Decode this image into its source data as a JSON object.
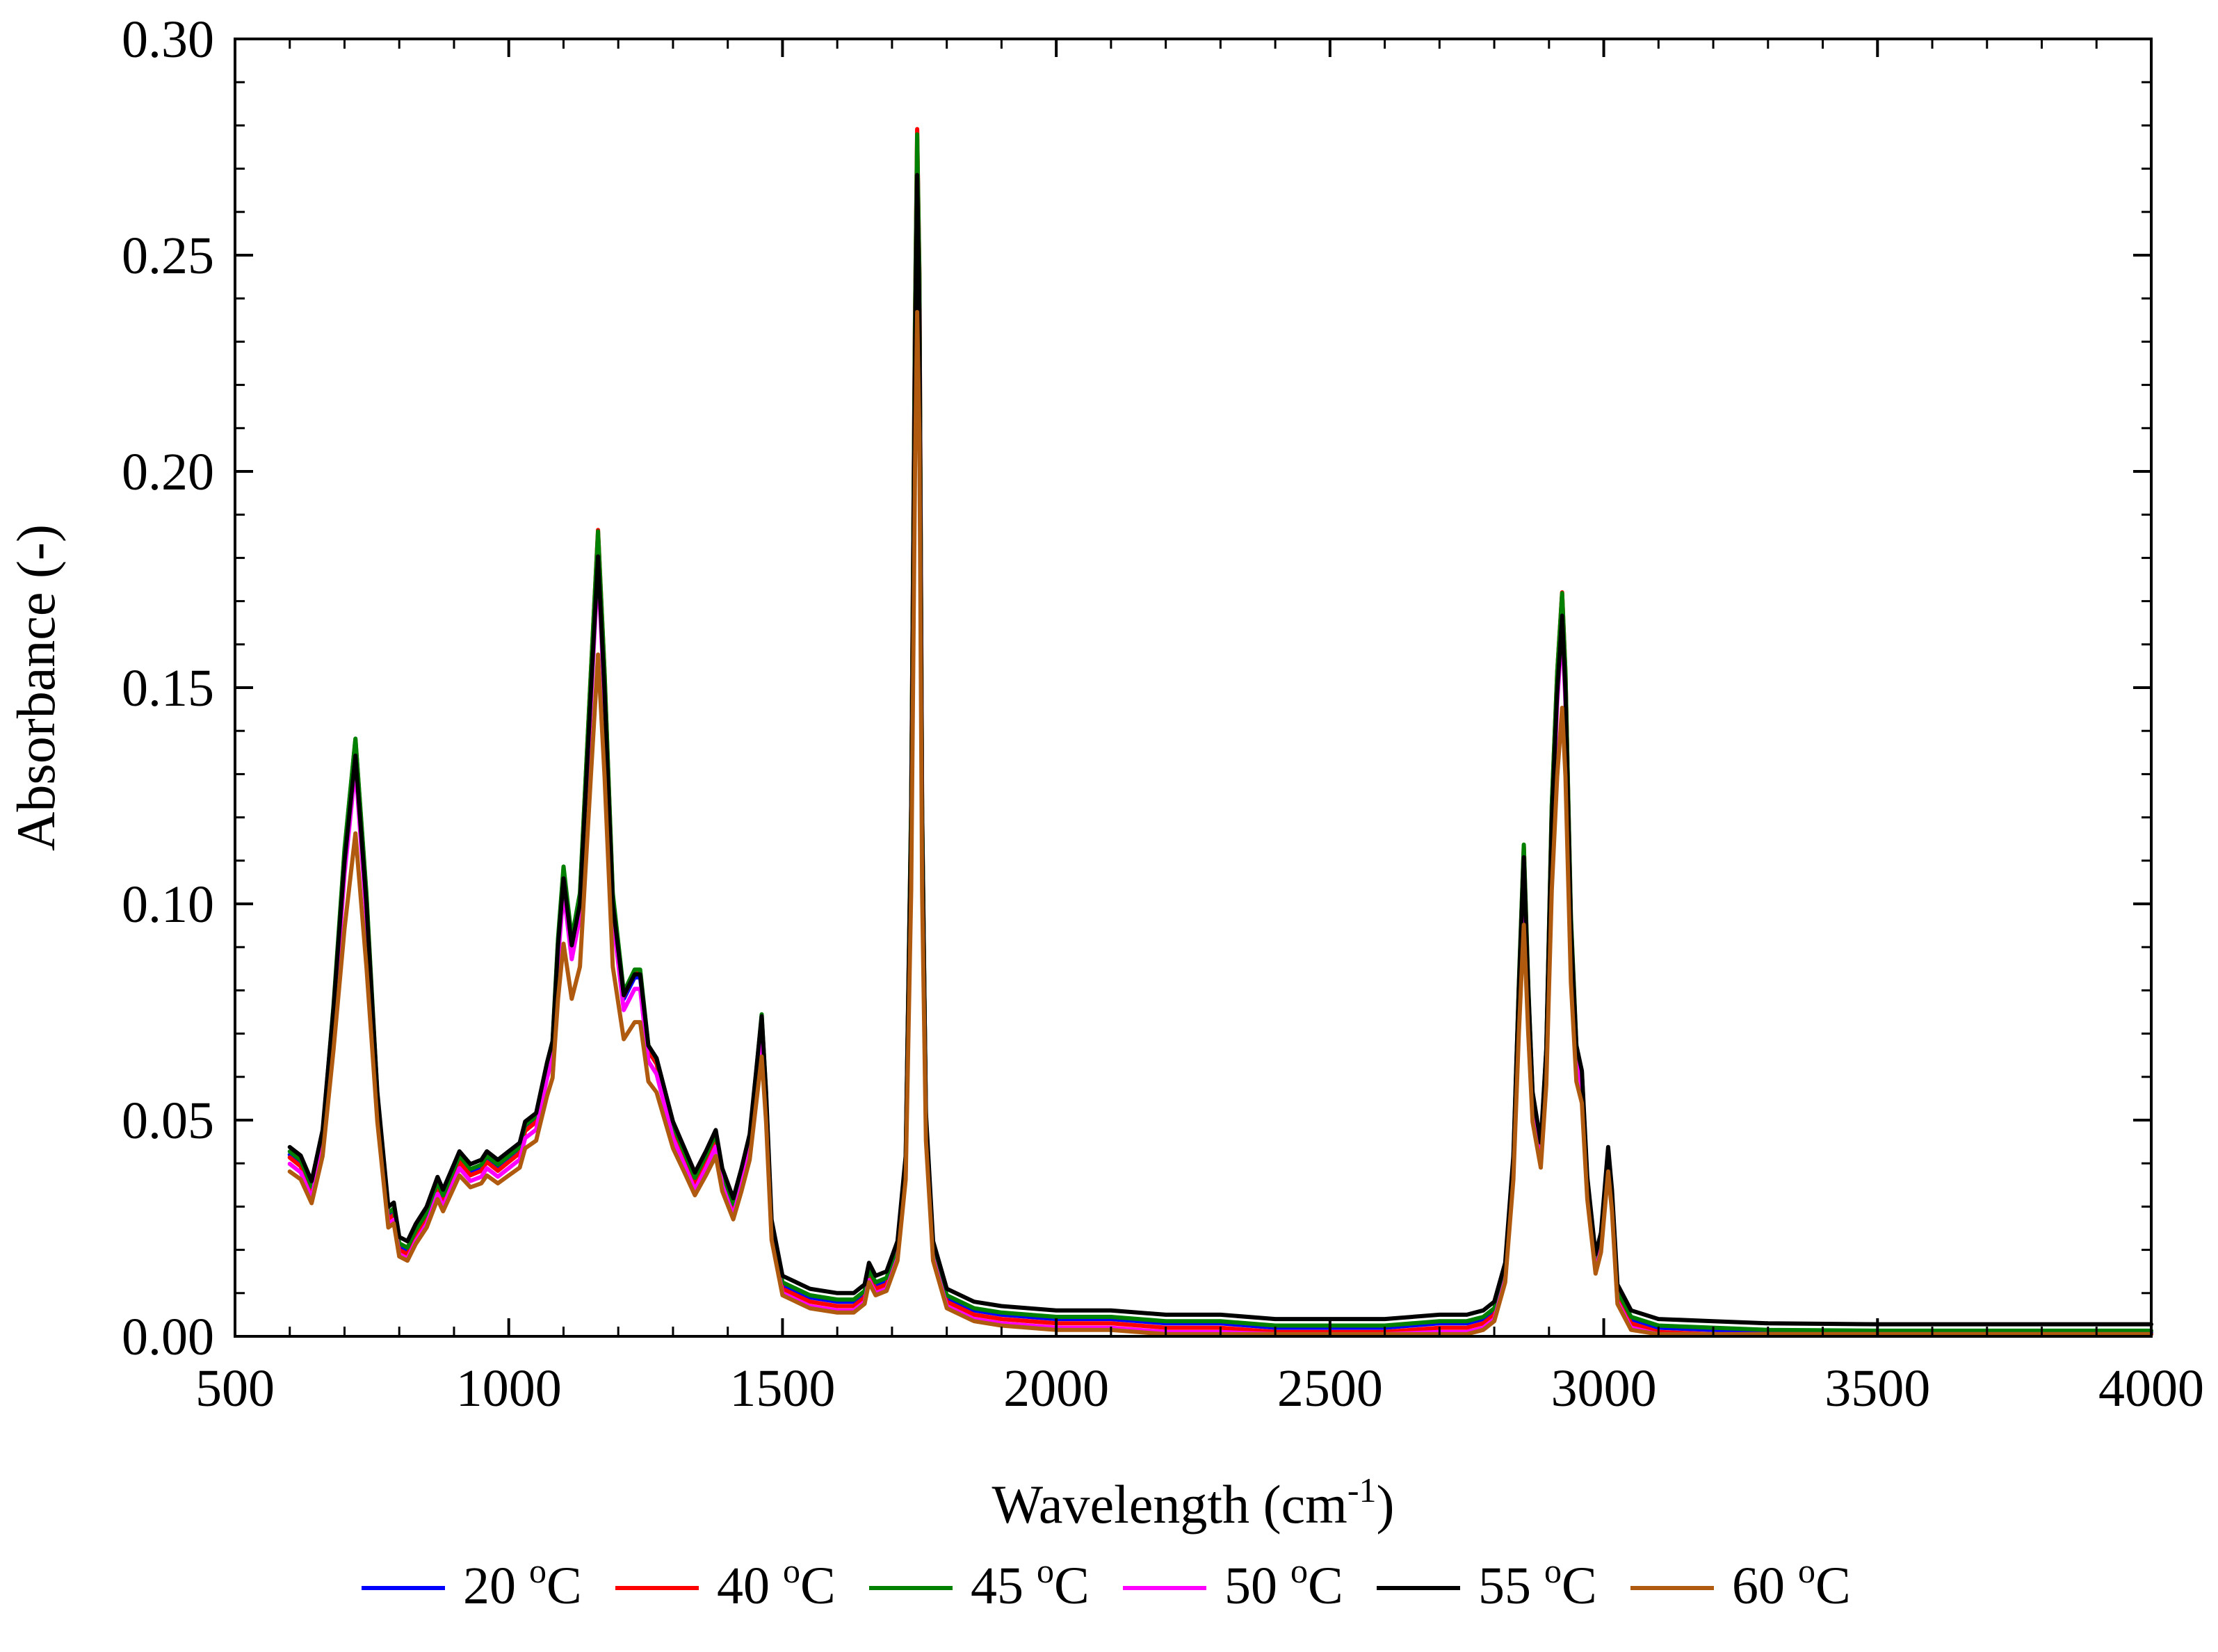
{
  "chart_data": {
    "type": "line",
    "xlabel": "Wavelength (cm",
    "xlabel_sup": "-1",
    "xlabel_close": ")",
    "ylabel": "Absorbance (-)",
    "xlim": [
      500,
      4000
    ],
    "ylim": [
      0,
      0.3
    ],
    "xticks": [
      {
        "value": 500,
        "label": "500"
      },
      {
        "value": 1000,
        "label": "1000"
      },
      {
        "value": 1500,
        "label": "1500"
      },
      {
        "value": 2000,
        "label": "2000"
      },
      {
        "value": 2500,
        "label": "2500"
      },
      {
        "value": 3000,
        "label": "3000"
      },
      {
        "value": 3500,
        "label": "3500"
      },
      {
        "value": 4000,
        "label": "4000"
      }
    ],
    "yticks": [
      {
        "value": 0.0,
        "label": "0.00"
      },
      {
        "value": 0.05,
        "label": "0.05"
      },
      {
        "value": 0.1,
        "label": "0.10"
      },
      {
        "value": 0.15,
        "label": "0.15"
      },
      {
        "value": 0.2,
        "label": "0.20"
      },
      {
        "value": 0.25,
        "label": "0.25"
      },
      {
        "value": 0.3,
        "label": "0.30"
      }
    ],
    "grid": false,
    "legend_position": "bottom",
    "x": [
      600,
      620,
      640,
      660,
      680,
      700,
      720,
      740,
      760,
      780,
      790,
      800,
      815,
      830,
      850,
      870,
      880,
      900,
      910,
      930,
      950,
      960,
      980,
      1000,
      1020,
      1030,
      1050,
      1070,
      1080,
      1090,
      1100,
      1115,
      1130,
      1150,
      1163,
      1175,
      1190,
      1210,
      1230,
      1240,
      1255,
      1270,
      1300,
      1320,
      1340,
      1360,
      1378,
      1390,
      1410,
      1425,
      1440,
      1452,
      1462,
      1470,
      1480,
      1500,
      1550,
      1600,
      1630,
      1650,
      1658,
      1670,
      1690,
      1710,
      1725,
      1735,
      1742,
      1746,
      1750,
      1755,
      1762,
      1775,
      1800,
      1850,
      1900,
      2000,
      2100,
      2200,
      2300,
      2400,
      2500,
      2600,
      2700,
      2750,
      2780,
      2800,
      2820,
      2835,
      2845,
      2854,
      2862,
      2870,
      2885,
      2895,
      2905,
      2915,
      2924,
      2930,
      2940,
      2950,
      2960,
      2970,
      2985,
      2995,
      3008,
      3015,
      3025,
      3050,
      3100,
      3200,
      3300,
      3500,
      3700,
      4000
    ],
    "base": [
      0.042,
      0.04,
      0.034,
      0.046,
      0.075,
      0.11,
      0.135,
      0.1,
      0.055,
      0.028,
      0.029,
      0.021,
      0.02,
      0.024,
      0.028,
      0.035,
      0.032,
      0.038,
      0.041,
      0.038,
      0.039,
      0.041,
      0.039,
      0.041,
      0.043,
      0.048,
      0.05,
      0.062,
      0.067,
      0.09,
      0.106,
      0.09,
      0.1,
      0.15,
      0.182,
      0.15,
      0.1,
      0.078,
      0.083,
      0.083,
      0.066,
      0.063,
      0.048,
      0.042,
      0.036,
      0.041,
      0.046,
      0.037,
      0.03,
      0.037,
      0.045,
      0.06,
      0.073,
      0.055,
      0.025,
      0.012,
      0.009,
      0.008,
      0.008,
      0.01,
      0.015,
      0.012,
      0.013,
      0.02,
      0.04,
      0.12,
      0.23,
      0.272,
      0.24,
      0.12,
      0.05,
      0.02,
      0.009,
      0.006,
      0.005,
      0.004,
      0.004,
      0.003,
      0.003,
      0.002,
      0.002,
      0.002,
      0.003,
      0.003,
      0.004,
      0.006,
      0.015,
      0.04,
      0.08,
      0.111,
      0.08,
      0.055,
      0.043,
      0.065,
      0.12,
      0.15,
      0.168,
      0.15,
      0.095,
      0.066,
      0.06,
      0.035,
      0.017,
      0.022,
      0.042,
      0.032,
      0.01,
      0.004,
      0.002,
      0.0015,
      0.001,
      0.0008,
      0.0008,
      0.0008
    ],
    "series": [
      {
        "name": "20 °C",
        "label_pre": "20 ",
        "label_sup": "o",
        "label_post": "C",
        "color": "#0000ff",
        "peak_scale": 1.0,
        "offset": 0.0
      },
      {
        "name": "40 °C",
        "label_pre": "40 ",
        "label_sup": "o",
        "label_post": "C",
        "color": "#ff0000",
        "peak_scale": 1.03,
        "offset": -0.001
      },
      {
        "name": "45 °C",
        "label_pre": "45 ",
        "label_sup": "o",
        "label_post": "C",
        "color": "#008000",
        "peak_scale": 1.02,
        "offset": 0.0005
      },
      {
        "name": "50 °C",
        "label_pre": "50 ",
        "label_sup": "o",
        "label_post": "C",
        "color": "#ff00ff",
        "peak_scale": 0.99,
        "offset": -0.002
      },
      {
        "name": "55 °C",
        "label_pre": "55 ",
        "label_sup": "o",
        "label_post": "C",
        "color": "#000000",
        "peak_scale": 0.98,
        "offset": 0.002
      },
      {
        "name": "60 °C",
        "label_pre": "60 ",
        "label_sup": "o",
        "label_post": "C",
        "color": "#b05a10",
        "peak_scale": 0.88,
        "offset": -0.0025
      }
    ]
  }
}
